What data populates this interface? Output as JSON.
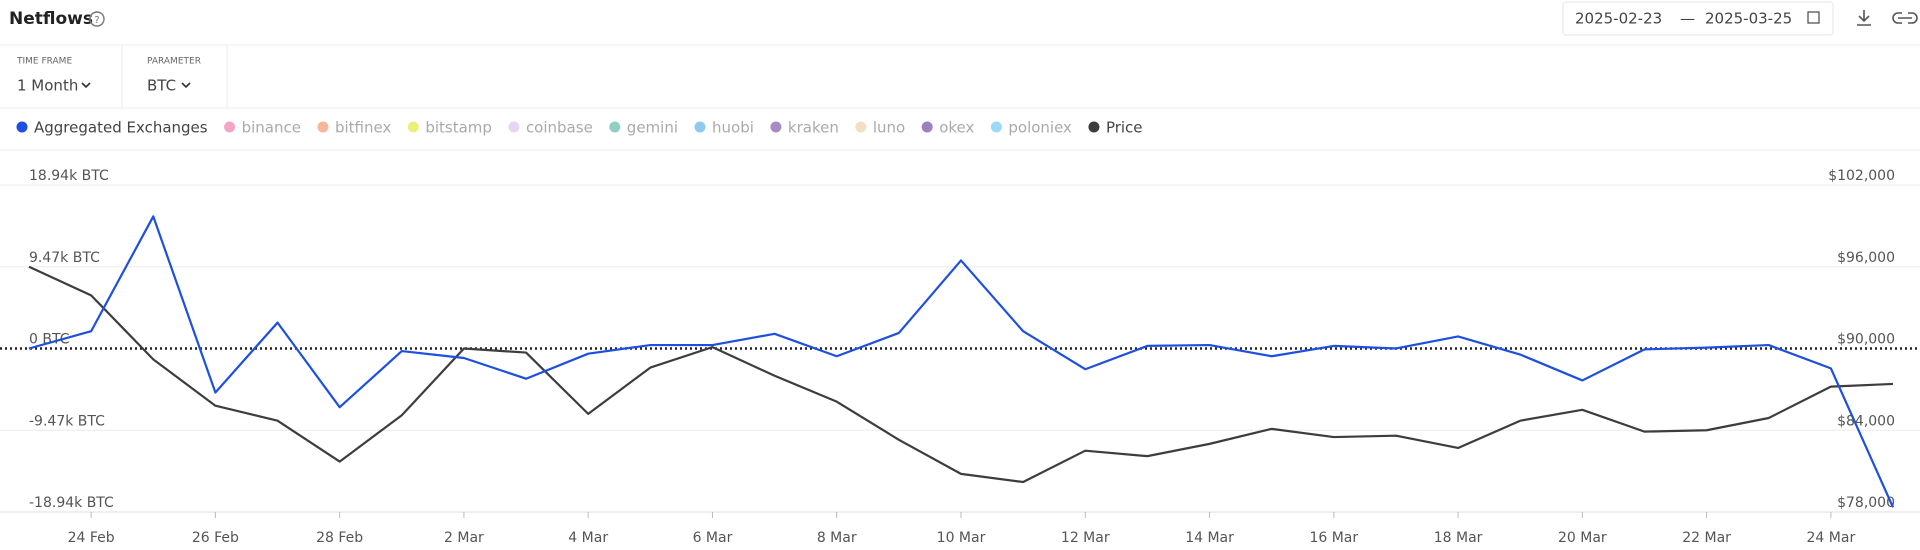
{
  "header": {
    "title": "Netflows",
    "date_from": "2025-02-23",
    "date_sep": "—",
    "date_to": "2025-03-25"
  },
  "controls": [
    {
      "label": "TIME FRAME",
      "value": "1 Month"
    },
    {
      "label": "PARAMETER",
      "value": "BTC"
    }
  ],
  "chart_data": {
    "type": "line",
    "categories": [
      null,
      "24 Feb",
      null,
      "26 Feb",
      null,
      "28 Feb",
      null,
      "2 Mar",
      null,
      "4 Mar",
      null,
      "6 Mar",
      null,
      "8 Mar",
      null,
      "10 Mar",
      null,
      "12 Mar",
      null,
      "14 Mar",
      null,
      "16 Mar",
      null,
      "18 Mar",
      null,
      "20 Mar",
      null,
      "22 Mar",
      null,
      "24 Mar",
      null
    ],
    "series": [
      {
        "name": "Aggregated Exchanges",
        "color": "#1d4fe0",
        "values": [
          0,
          2000,
          15300,
          -5100,
          3000,
          -6800,
          -300,
          -1100,
          -3500,
          -600,
          400,
          400,
          1700,
          -900,
          1800,
          10200,
          2000,
          -2400,
          300,
          400,
          -900,
          300,
          0,
          1400,
          -700,
          -3700,
          -100,
          100,
          400,
          -2300,
          -18400
        ]
      },
      {
        "name": "Price",
        "color": "#3d3d3d",
        "axis": "y2",
        "values": [
          96000,
          93900,
          89200,
          85800,
          84700,
          81700,
          85100,
          90000,
          89700,
          85200,
          88600,
          90100,
          88000,
          86100,
          83300,
          80800,
          80200,
          82500,
          82100,
          83000,
          84100,
          83500,
          83600,
          82700,
          84700,
          85500,
          83900,
          84000,
          84900,
          87200,
          87400
        ]
      }
    ],
    "inactive_series": [
      {
        "name": "binance",
        "color": "#f2a6c8"
      },
      {
        "name": "bitfinex",
        "color": "#f7b89a"
      },
      {
        "name": "bitstamp",
        "color": "#eaf07a"
      },
      {
        "name": "coinbase",
        "color": "#e6d5f5"
      },
      {
        "name": "gemini",
        "color": "#8fcfc4"
      },
      {
        "name": "huobi",
        "color": "#8ec9ef"
      },
      {
        "name": "kraken",
        "color": "#a98bc4"
      },
      {
        "name": "luno",
        "color": "#f3dfc4"
      },
      {
        "name": "okex",
        "color": "#9f7fbf"
      },
      {
        "name": "poloniex",
        "color": "#9bd9f7"
      }
    ],
    "ylim": [
      -18940,
      18940
    ],
    "yticks": [
      {
        "value": 18940,
        "label": "18.94k BTC"
      },
      {
        "value": 9470,
        "label": "9.47k BTC"
      },
      {
        "value": 0,
        "label": "0 BTC"
      },
      {
        "value": -9470,
        "label": "-9.47k BTC"
      },
      {
        "value": -18940,
        "label": "-18.94k BTC"
      }
    ],
    "y2lim": [
      78000,
      102000
    ],
    "y2ticks": [
      {
        "value": 102000,
        "label": "$102,000"
      },
      {
        "value": 96000,
        "label": "$96,000"
      },
      {
        "value": 90000,
        "label": "$90,000"
      },
      {
        "value": 84000,
        "label": "$84,000"
      },
      {
        "value": 78000,
        "label": "$78,000"
      }
    ],
    "grid": true,
    "legend": "top"
  }
}
